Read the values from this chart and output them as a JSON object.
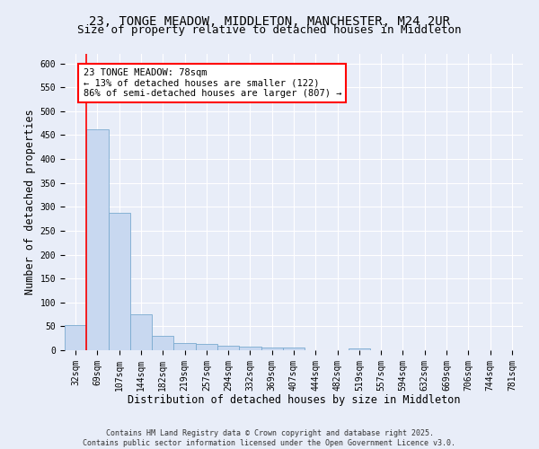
{
  "title1": "23, TONGE MEADOW, MIDDLETON, MANCHESTER, M24 2UR",
  "title2": "Size of property relative to detached houses in Middleton",
  "xlabel": "Distribution of detached houses by size in Middleton",
  "ylabel": "Number of detached properties",
  "footnote": "Contains HM Land Registry data © Crown copyright and database right 2025.\nContains public sector information licensed under the Open Government Licence v3.0.",
  "categories": [
    "32sqm",
    "69sqm",
    "107sqm",
    "144sqm",
    "182sqm",
    "219sqm",
    "257sqm",
    "294sqm",
    "332sqm",
    "369sqm",
    "407sqm",
    "444sqm",
    "482sqm",
    "519sqm",
    "557sqm",
    "594sqm",
    "632sqm",
    "669sqm",
    "706sqm",
    "744sqm",
    "781sqm"
  ],
  "values": [
    53,
    463,
    287,
    75,
    30,
    15,
    14,
    10,
    7,
    5,
    5,
    0,
    0,
    4,
    0,
    0,
    0,
    0,
    0,
    0,
    0
  ],
  "bar_color": "#c8d8f0",
  "bar_edge_color": "#7aaad0",
  "red_line_index": 1,
  "annotation_text": "23 TONGE MEADOW: 78sqm\n← 13% of detached houses are smaller (122)\n86% of semi-detached houses are larger (807) →",
  "annotation_box_color": "white",
  "annotation_edge_color": "red",
  "background_color": "#e8edf8",
  "ylim": [
    0,
    620
  ],
  "yticks": [
    0,
    50,
    100,
    150,
    200,
    250,
    300,
    350,
    400,
    450,
    500,
    550,
    600
  ],
  "grid_color": "white",
  "title_fontsize": 10,
  "subtitle_fontsize": 9,
  "axis_label_fontsize": 8.5,
  "tick_fontsize": 7,
  "annotation_fontsize": 7.5,
  "footnote_fontsize": 6
}
